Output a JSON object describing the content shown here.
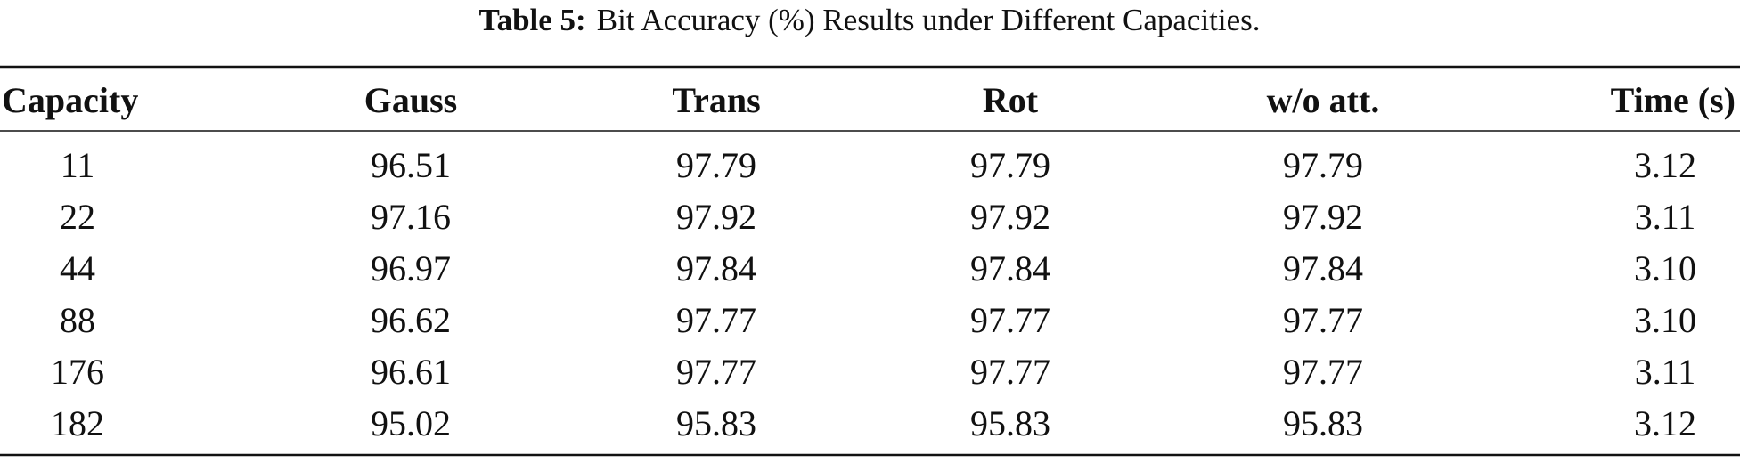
{
  "table": {
    "caption": {
      "label": "Table 5:",
      "text": "Bit Accuracy (%) Results under Different Capacities."
    },
    "columns": [
      "Capacity",
      "Gauss",
      "Trans",
      "Rot",
      "w/o att.",
      "Time (s)"
    ],
    "rows": [
      [
        "11",
        "96.51",
        "97.79",
        "97.79",
        "97.79",
        "3.12"
      ],
      [
        "22",
        "97.16",
        "97.92",
        "97.92",
        "97.92",
        "3.11"
      ],
      [
        "44",
        "96.97",
        "97.84",
        "97.84",
        "97.84",
        "3.10"
      ],
      [
        "88",
        "96.62",
        "97.77",
        "97.77",
        "97.77",
        "3.10"
      ],
      [
        "176",
        "96.61",
        "97.77",
        "97.77",
        "97.77",
        "3.11"
      ],
      [
        "182",
        "95.02",
        "95.83",
        "95.83",
        "95.83",
        "3.12"
      ]
    ]
  }
}
